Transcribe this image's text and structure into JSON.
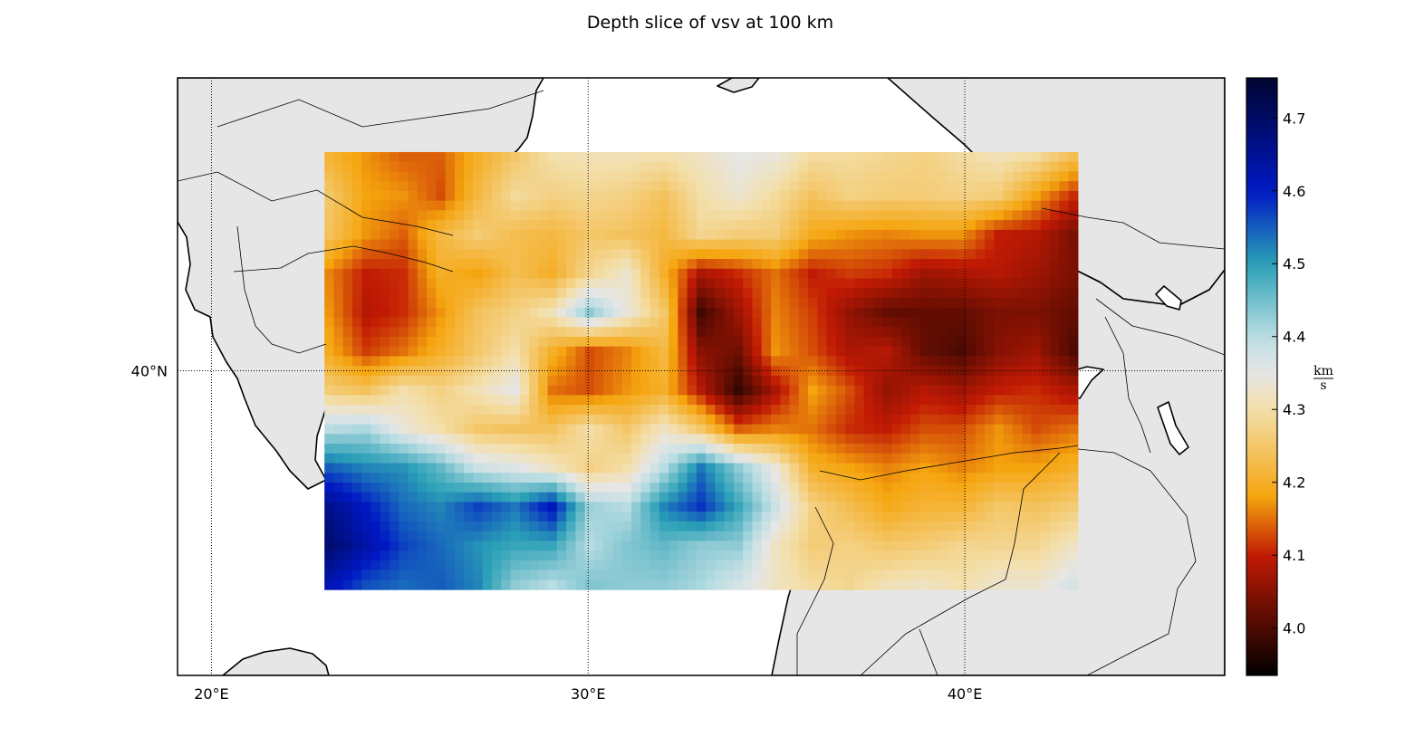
{
  "title": "Depth slice of vsv at 100 km",
  "map": {
    "lon_range": [
      19.1,
      46.9
    ],
    "lat_range": [
      32.2,
      47.5
    ],
    "data_lon_range": [
      23,
      43
    ],
    "data_lat_range": [
      34.4,
      45.6
    ],
    "gridlines": {
      "longitudes": [
        20,
        30,
        40
      ],
      "latitudes": [
        40
      ]
    },
    "x_tick_labels": [
      "20°E",
      "30°E",
      "40°E"
    ],
    "y_tick_labels": [
      "40°N"
    ],
    "land_color": "#e6e6e6",
    "sea_color": "#ffffff",
    "coastline_color": "#000000"
  },
  "colorbar": {
    "vmin": 3.935,
    "vmax": 4.755,
    "ticks": [
      4.0,
      4.1,
      4.2,
      4.3,
      4.4,
      4.5,
      4.6,
      4.7
    ],
    "tick_labels": [
      "4.0",
      "4.1",
      "4.2",
      "4.3",
      "4.4",
      "4.5",
      "4.6",
      "4.7"
    ],
    "unit_numerator": "km",
    "unit_denominator": "s",
    "colormap": [
      {
        "v": 3.935,
        "color": "#000000"
      },
      {
        "v": 4.1,
        "color": "#c11a04"
      },
      {
        "v": 4.18,
        "color": "#f5a50e"
      },
      {
        "v": 4.3,
        "color": "#f3dfaa"
      },
      {
        "v": 4.35,
        "color": "#e6e6e6"
      },
      {
        "v": 4.4,
        "color": "#b9dde2"
      },
      {
        "v": 4.5,
        "color": "#2aa0b6"
      },
      {
        "v": 4.6,
        "color": "#0018c4"
      },
      {
        "v": 4.755,
        "color": "#000430"
      }
    ]
  },
  "chart_data": {
    "type": "heatmap",
    "title": "Depth slice of vsv at 100 km",
    "xlabel": "",
    "ylabel": "",
    "quantity": "vsv",
    "depth_km": 100,
    "grid": {
      "lon_start": 23,
      "lon_end": 43,
      "nx": 21,
      "lat_start": 45.6,
      "lat_end": 34.4,
      "ny": 12
    },
    "values": [
      [
        4.21,
        4.17,
        4.14,
        4.14,
        4.2,
        4.25,
        4.3,
        4.31,
        4.31,
        4.3,
        4.32,
        4.35,
        4.34,
        4.29,
        4.29,
        4.28,
        4.27,
        4.29,
        4.31,
        4.29,
        4.23
      ],
      [
        4.25,
        4.18,
        4.17,
        4.13,
        4.22,
        4.29,
        4.27,
        4.28,
        4.27,
        4.24,
        4.3,
        4.33,
        4.29,
        4.24,
        4.27,
        4.26,
        4.26,
        4.27,
        4.26,
        4.18,
        4.11
      ],
      [
        4.24,
        4.17,
        4.14,
        4.22,
        4.26,
        4.23,
        4.22,
        4.25,
        4.24,
        4.22,
        4.28,
        4.26,
        4.26,
        4.19,
        4.17,
        4.16,
        4.17,
        4.17,
        4.1,
        4.09,
        4.04
      ],
      [
        4.16,
        4.1,
        4.11,
        4.2,
        4.18,
        4.23,
        4.2,
        4.28,
        4.33,
        4.2,
        4.08,
        4.11,
        4.15,
        4.1,
        4.12,
        4.11,
        4.07,
        4.08,
        4.09,
        4.07,
        4.04
      ],
      [
        4.17,
        4.09,
        4.11,
        4.17,
        4.24,
        4.27,
        4.31,
        4.43,
        4.34,
        4.25,
        3.99,
        4.07,
        4.16,
        4.12,
        4.06,
        4.02,
        4.02,
        4.02,
        4.04,
        4.04,
        4.02
      ],
      [
        4.19,
        4.12,
        4.15,
        4.2,
        4.25,
        4.3,
        4.2,
        4.13,
        4.16,
        4.22,
        4.05,
        4.03,
        4.17,
        4.13,
        4.08,
        4.09,
        4.02,
        4.0,
        4.05,
        4.07,
        4.0
      ],
      [
        4.26,
        4.24,
        4.3,
        4.27,
        4.31,
        4.35,
        4.15,
        4.13,
        4.17,
        4.2,
        4.09,
        3.98,
        4.08,
        4.18,
        4.13,
        4.06,
        4.09,
        4.07,
        4.1,
        4.11,
        4.08
      ],
      [
        4.4,
        4.41,
        4.34,
        4.3,
        4.25,
        4.24,
        4.24,
        4.3,
        4.25,
        4.32,
        4.25,
        4.14,
        4.16,
        4.15,
        4.11,
        4.1,
        4.13,
        4.13,
        4.17,
        4.13,
        4.15
      ],
      [
        4.55,
        4.52,
        4.51,
        4.46,
        4.38,
        4.36,
        4.32,
        4.27,
        4.3,
        4.4,
        4.53,
        4.43,
        4.34,
        4.2,
        4.18,
        4.16,
        4.18,
        4.16,
        4.18,
        4.18,
        4.2
      ],
      [
        4.66,
        4.6,
        4.54,
        4.52,
        4.57,
        4.53,
        4.61,
        4.42,
        4.4,
        4.52,
        4.58,
        4.49,
        4.38,
        4.27,
        4.23,
        4.19,
        4.21,
        4.21,
        4.25,
        4.24,
        4.26
      ],
      [
        4.69,
        4.63,
        4.57,
        4.54,
        4.51,
        4.49,
        4.49,
        4.4,
        4.44,
        4.46,
        4.43,
        4.43,
        4.32,
        4.26,
        4.27,
        4.25,
        4.26,
        4.28,
        4.28,
        4.28,
        4.32
      ],
      [
        4.62,
        4.56,
        4.54,
        4.55,
        4.52,
        4.43,
        4.4,
        4.44,
        4.43,
        4.43,
        4.41,
        4.37,
        4.32,
        4.29,
        4.28,
        4.31,
        4.32,
        4.3,
        4.33,
        4.33,
        4.37
      ]
    ],
    "colorbar_range": [
      3.935,
      4.755
    ],
    "colorbar_unit": "km/s",
    "grid_lines": true
  }
}
